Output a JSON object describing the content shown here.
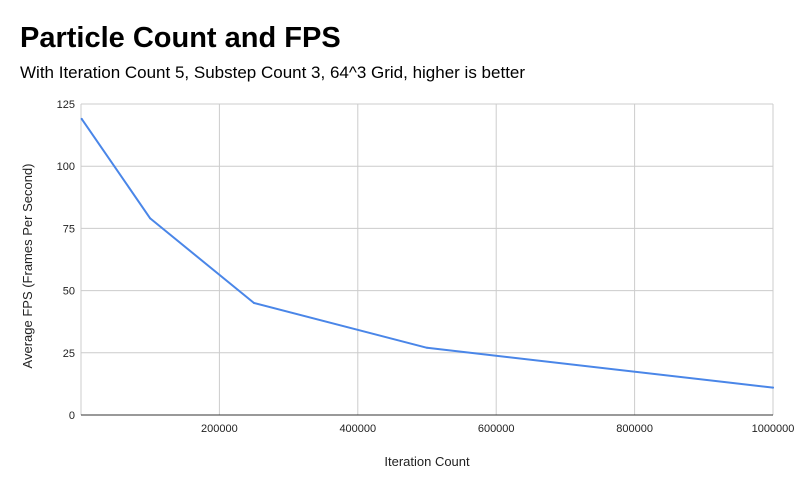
{
  "chart_data": {
    "type": "line",
    "title": "Particle Count and FPS",
    "subtitle": "With Iteration Count 5, Substep Count 3, 64^3 Grid, higher is better",
    "xlabel": "Iteration Count",
    "ylabel": "Average FPS (Frames Per Second)",
    "xlim": [
      0,
      1000000
    ],
    "ylim": [
      0,
      125
    ],
    "x_ticks": [
      200000,
      400000,
      600000,
      800000,
      1000000
    ],
    "y_ticks": [
      0,
      25,
      50,
      75,
      100,
      125
    ],
    "grid": true,
    "legend": "none",
    "series": [
      {
        "color": "#4a86e8",
        "points": [
          {
            "x": 1000,
            "y": 119
          },
          {
            "x": 100000,
            "y": 79
          },
          {
            "x": 250000,
            "y": 45
          },
          {
            "x": 500000,
            "y": 27
          },
          {
            "x": 1000000,
            "y": 11
          }
        ]
      }
    ]
  }
}
